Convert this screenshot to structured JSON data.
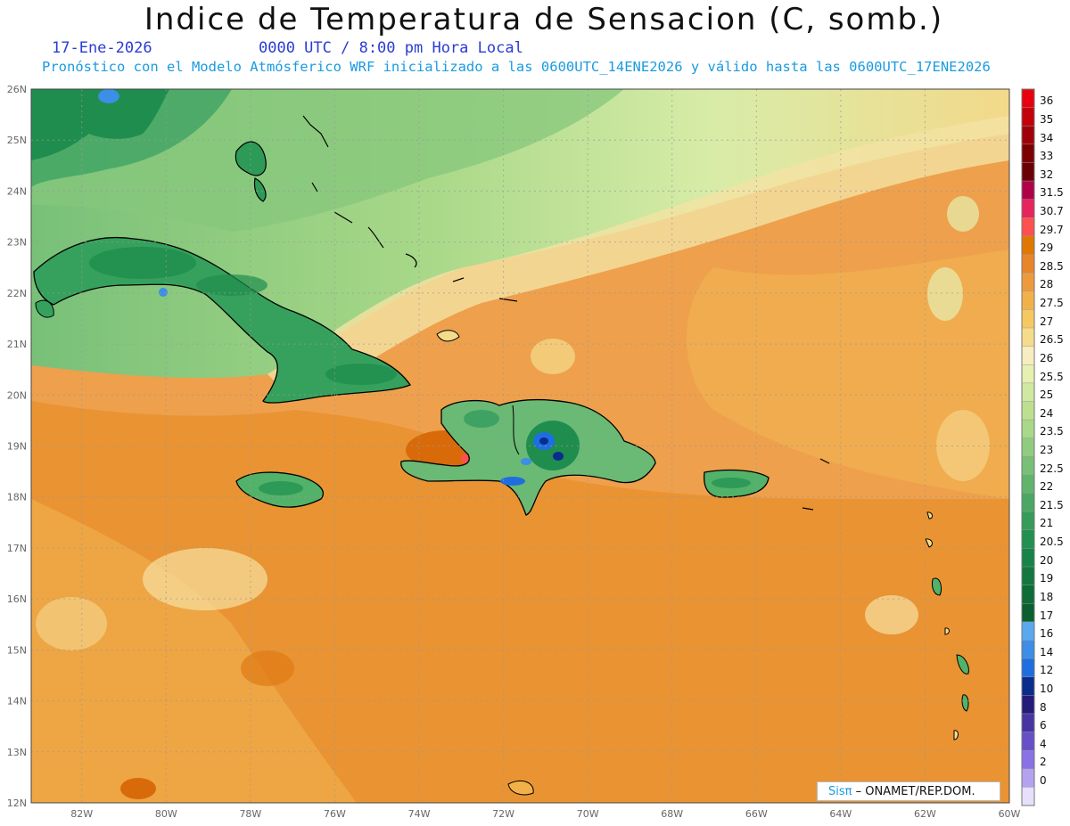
{
  "header": {
    "title": "Indice de Temperatura de Sensacion (C, somb.)",
    "date": "17-Ene-2026",
    "time": "0000 UTC / 8:00 pm Hora Local",
    "model_line": "Pronóstico con el Modelo Atmósferico WRF inicializado a las 0600UTC_14ENE2026 y válido hasta las  0600UTC_17ENE2026"
  },
  "map": {
    "lat_labels": [
      "26N",
      "25N",
      "24N",
      "23N",
      "22N",
      "21N",
      "20N",
      "19N",
      "18N",
      "17N",
      "16N",
      "15N",
      "14N",
      "13N",
      "12N"
    ],
    "lon_labels": [
      "82W",
      "80W",
      "78W",
      "76W",
      "74W",
      "72W",
      "70W",
      "68W",
      "66W",
      "64W",
      "62W",
      "60W"
    ],
    "lat_range": [
      12,
      26
    ],
    "lon_range": [
      -83.2,
      -60
    ],
    "grid": true
  },
  "colorbar": {
    "levels": [
      "36",
      "35",
      "34",
      "33",
      "32",
      "31.5",
      "30.7",
      "29.7",
      "29",
      "28.5",
      "28",
      "27.5",
      "27",
      "26.5",
      "26",
      "25.5",
      "25",
      "24",
      "23.5",
      "23",
      "22.5",
      "22",
      "21.5",
      "21",
      "20.5",
      "20",
      "19",
      "18",
      "17",
      "16",
      "14",
      "12",
      "10",
      "8",
      "6",
      "4",
      "2",
      "0"
    ],
    "colors": [
      "#e8000f",
      "#c4000a",
      "#a0000a",
      "#7c0000",
      "#6a0006",
      "#b00048",
      "#e8245e",
      "#ff5050",
      "#e07800",
      "#e8852a",
      "#ee9a3c",
      "#f2b04a",
      "#f5c862",
      "#f5dc8a",
      "#f7edc0",
      "#e6f0b0",
      "#cfe8a2",
      "#bde090",
      "#a8d888",
      "#90cc80",
      "#78c078",
      "#60b46c",
      "#4aa864",
      "#369c5a",
      "#229050",
      "#168448",
      "#12783f",
      "#0e6c36",
      "#0a602e",
      "#5aa8f0",
      "#3c8ee6",
      "#1e6ee0",
      "#0a2c8c",
      "#241c7a",
      "#4636a4",
      "#6650c8",
      "#8a72e6",
      "#b4a2f0",
      "#e6e0fc"
    ],
    "bottom_color": "#e6e0fc"
  },
  "credit": {
    "prefix": "Sis",
    "pi": "π",
    "suffix": " – ONAMET/REP.DOM."
  }
}
